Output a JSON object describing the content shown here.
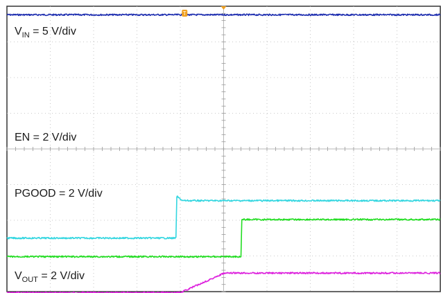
{
  "chart_data": {
    "type": "line",
    "divisions": {
      "x": 10,
      "y": 8
    },
    "grid": true,
    "trigger_marker": {
      "label": "T",
      "color": "#f0a020"
    },
    "series": [
      {
        "name": "VIN",
        "color": "#1f2fb0",
        "scale": "5 V/div",
        "points": [
          [
            0,
            7.76
          ],
          [
            10,
            7.76
          ]
        ]
      },
      {
        "name": "EN",
        "color": "#33d6e0",
        "scale": "2 V/div",
        "points": [
          [
            0,
            1.5
          ],
          [
            3.9,
            1.5
          ],
          [
            3.92,
            2.67
          ],
          [
            4.05,
            2.55
          ],
          [
            10,
            2.55
          ]
        ]
      },
      {
        "name": "PGOOD",
        "color": "#22dd22",
        "scale": "2 V/div",
        "points": [
          [
            0,
            0.98
          ],
          [
            5.4,
            0.98
          ],
          [
            5.42,
            2.02
          ],
          [
            10,
            2.02
          ]
        ]
      },
      {
        "name": "VOUT",
        "color": "#dd22dd",
        "scale": "2 V/div",
        "points": [
          [
            0,
            -0.03
          ],
          [
            4.0,
            -0.03
          ],
          [
            5.0,
            0.51
          ],
          [
            5.1,
            0.52
          ],
          [
            10,
            0.52
          ]
        ]
      }
    ]
  },
  "labels": {
    "vin": {
      "main": "V",
      "sub": "IN",
      "rest": " = 5 V/div"
    },
    "en": {
      "text": "EN = 2 V/div"
    },
    "pgood": {
      "text": "PGOOD = 2 V/div"
    },
    "vout": {
      "main": "V",
      "sub": "OUT",
      "rest": " = 2 V/div"
    }
  }
}
